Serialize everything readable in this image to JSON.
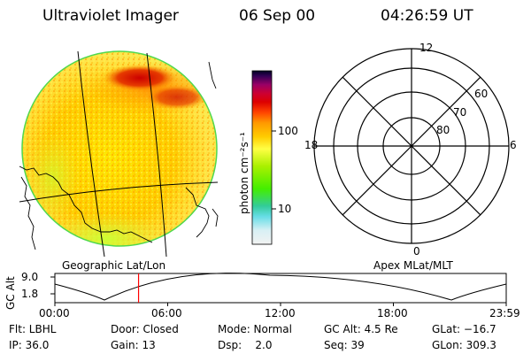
{
  "header": {
    "instrument": "Ultraviolet Imager",
    "date": "06 Sep 00",
    "time": "04:26:59 UT"
  },
  "colorbar": {
    "unit_label": "photon cm⁻²s⁻¹",
    "ticks": [
      "100",
      "10"
    ]
  },
  "polar_plot": {
    "mlt_labels": [
      "12",
      "18",
      "6",
      "0"
    ],
    "lat_labels": [
      "60",
      "70",
      "80"
    ]
  },
  "orbit_panel": {
    "left_title": "Geographic Lat/Lon",
    "right_title": "Apex MLat/MLT",
    "y_label": "GC Alt",
    "y_ticks": [
      "9.0",
      "1.8"
    ],
    "x_ticks": [
      "00:00",
      "06:00",
      "12:00",
      "18:00",
      "23:59"
    ],
    "marker_time_hours": 4.45,
    "accent_color": "#ff0000"
  },
  "status": {
    "flt": "Flt: LBHL",
    "ip": "IP: 36.0",
    "door": "Door: Closed",
    "gain": "Gain: 13",
    "mode": "Mode: Normal",
    "dsp": "Dsp:    2.0",
    "gcalt": "GC Alt: 4.5 Re",
    "seq": "Seq: 39",
    "glat": "GLat: −16.7",
    "glon": "GLon: 309.3"
  }
}
